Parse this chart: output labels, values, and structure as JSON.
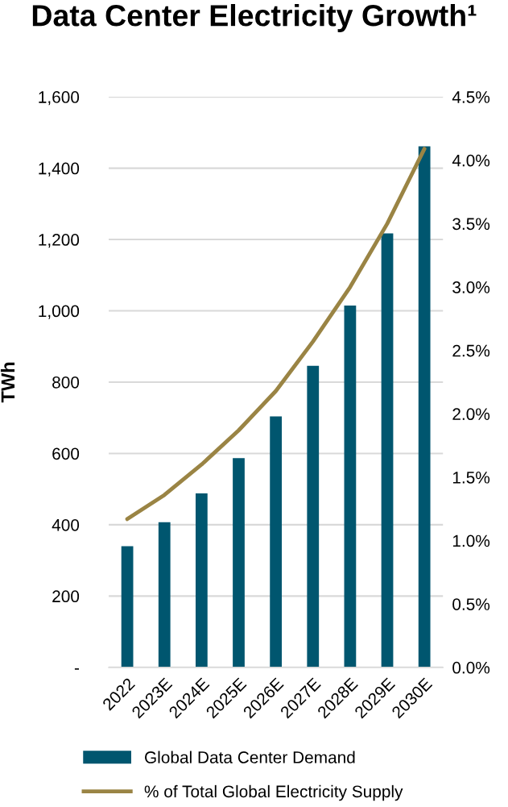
{
  "chart_data": {
    "type": "bar",
    "title": "Data Center Electricity Growth¹",
    "ylabel": "TWh",
    "categories": [
      "2022",
      "2023E",
      "2024E",
      "2025E",
      "2026E",
      "2027E",
      "2028E",
      "2029E",
      "2030E"
    ],
    "series": [
      {
        "name": "Global Data Center Demand",
        "color": "#00566f",
        "values": [
          340,
          407,
          488,
          587,
          704,
          846,
          1015,
          1217,
          1461
        ]
      },
      {
        "name": "% of Total Global Electricity Supply",
        "type": "line",
        "axis": "y2",
        "color": "#9a8444",
        "values": [
          1.17,
          1.36,
          1.6,
          1.87,
          2.18,
          2.57,
          3.0,
          3.5,
          4.09
        ]
      }
    ],
    "ylim": [
      0,
      1600
    ],
    "yticks": [
      {
        "value": 0,
        "label": "-"
      },
      {
        "value": 200,
        "label": "200"
      },
      {
        "value": 400,
        "label": "400"
      },
      {
        "value": 600,
        "label": "600"
      },
      {
        "value": 800,
        "label": "800"
      },
      {
        "value": 1000,
        "label": "1,000"
      },
      {
        "value": 1200,
        "label": "1,200"
      },
      {
        "value": 1400,
        "label": "1,400"
      },
      {
        "value": 1600,
        "label": "1,600"
      }
    ],
    "y2lim": [
      0,
      4.5
    ],
    "y2ticks": [
      {
        "value": 0,
        "label": "0.0%"
      },
      {
        "value": 0.5,
        "label": "0.5%"
      },
      {
        "value": 1,
        "label": "1.0%"
      },
      {
        "value": 1.5,
        "label": "1.5%"
      },
      {
        "value": 2,
        "label": "2.0%"
      },
      {
        "value": 2.5,
        "label": "2.5%"
      },
      {
        "value": 3,
        "label": "3.0%"
      },
      {
        "value": 3.5,
        "label": "3.5%"
      },
      {
        "value": 4,
        "label": "4.0%"
      },
      {
        "value": 4.5,
        "label": "4.5%"
      }
    ],
    "grid": "y",
    "legend": "bottom",
    "marker": "none",
    "line_style": "solid"
  }
}
